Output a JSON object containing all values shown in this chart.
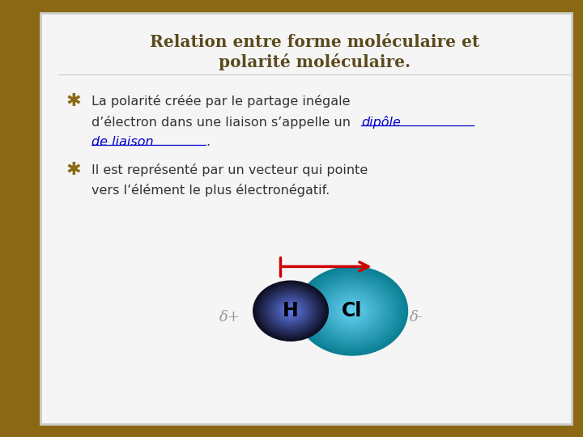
{
  "background_outer": "#8B6914",
  "background_inner": "#F5F5F5",
  "title_text_line1": "Relation entre forme moléculaire et",
  "title_text_line2": "polarité moléculaire.",
  "title_color": "#5C4A1E",
  "bullet_color": "#333333",
  "link_color": "#0000CC",
  "bullet_marker": "✱",
  "marker_color": "#8B6914",
  "delta_plus": "δ+",
  "delta_minus": "δ-",
  "delta_color": "#999999",
  "arrow_color": "#CC0000",
  "H_label": "H",
  "Cl_label": "Cl"
}
